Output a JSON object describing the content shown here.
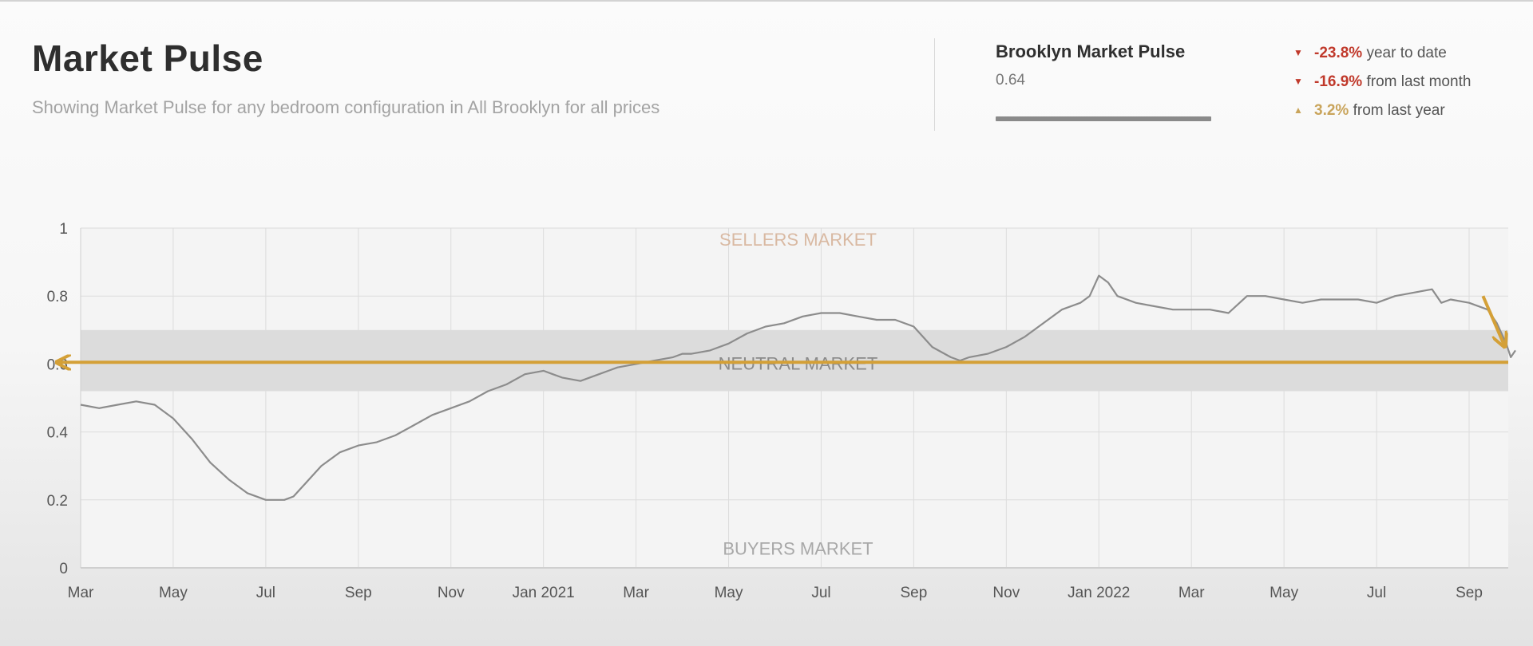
{
  "header": {
    "title": "Market Pulse",
    "subtitle": "Showing Market Pulse for any bedroom configuration in All Brooklyn for all prices"
  },
  "summary": {
    "title": "Brooklyn Market Pulse",
    "value": "0.64",
    "changes": [
      {
        "direction": "down",
        "percent": "-23.8%",
        "label": "year to date"
      },
      {
        "direction": "down",
        "percent": "-16.9%",
        "label": "from last month"
      },
      {
        "direction": "up",
        "percent": "3.2%",
        "label": "from last year"
      }
    ]
  },
  "colors": {
    "line": "#8c8c8c",
    "neutral_band": "#dcdcdc",
    "annotation": "#d4a037",
    "sellers_label": "#d9b9a2",
    "neutral_label": "#8a8a8a",
    "buyers_label": "#a8a8a8"
  },
  "chart_data": {
    "type": "line",
    "title": "Brooklyn Market Pulse",
    "xlabel": "",
    "ylabel": "",
    "ylim": [
      0,
      1
    ],
    "xlim": [
      0,
      15.5
    ],
    "x_unit": "months since Mar 2020",
    "grid": true,
    "yticks": [
      0,
      0.2,
      0.4,
      0.6,
      0.8,
      1
    ],
    "ytick_labels": [
      "0",
      "0.2",
      "0.4",
      "0.6",
      "0.8",
      "1"
    ],
    "xticks": [
      {
        "x": 0,
        "label": "Mar"
      },
      {
        "x": 1,
        "label": "May"
      },
      {
        "x": 2,
        "label": "Jul"
      },
      {
        "x": 3,
        "label": "Sep"
      },
      {
        "x": 4,
        "label": "Nov"
      },
      {
        "x": 5,
        "label": "Jan 2021"
      },
      {
        "x": 6,
        "label": "Mar"
      },
      {
        "x": 7,
        "label": "May"
      },
      {
        "x": 8,
        "label": "Jul"
      },
      {
        "x": 9,
        "label": "Sep"
      },
      {
        "x": 10,
        "label": "Nov"
      },
      {
        "x": 11,
        "label": "Jan 2022"
      },
      {
        "x": 12,
        "label": "Mar"
      },
      {
        "x": 13,
        "label": "May"
      },
      {
        "x": 14,
        "label": "Jul"
      },
      {
        "x": 15,
        "label": "Sep"
      }
    ],
    "bands": [
      {
        "name": "neutral",
        "y0": 0.52,
        "y1": 0.7
      }
    ],
    "zone_labels": [
      {
        "text": "SELLERS MARKET",
        "x": 7.75,
        "y": 0.97,
        "color": "#d9b9a2"
      },
      {
        "text": "NEUTRAL MARKET",
        "x": 7.75,
        "y": 0.605,
        "color": "#8a8a8a"
      },
      {
        "text": "BUYERS MARKET",
        "x": 7.75,
        "y": 0.06,
        "color": "#a8a8a8"
      }
    ],
    "annotations": [
      {
        "type": "hline",
        "y": 0.605,
        "color": "#d4a037",
        "arrow": "left"
      },
      {
        "type": "arrow",
        "from": [
          15.15,
          0.8
        ],
        "to": [
          15.38,
          0.655
        ],
        "color": "#d4a037"
      }
    ],
    "series": [
      {
        "name": "Market Pulse",
        "x": [
          0,
          0.2,
          0.4,
          0.6,
          0.8,
          1.0,
          1.2,
          1.4,
          1.6,
          1.8,
          2.0,
          2.2,
          2.3,
          2.4,
          2.5,
          2.6,
          2.8,
          3.0,
          3.2,
          3.4,
          3.6,
          3.8,
          4.0,
          4.2,
          4.4,
          4.6,
          4.8,
          5.0,
          5.1,
          5.2,
          5.4,
          5.6,
          5.8,
          6.0,
          6.2,
          6.4,
          6.5,
          6.6,
          6.8,
          7.0,
          7.2,
          7.4,
          7.6,
          7.8,
          8.0,
          8.2,
          8.4,
          8.6,
          8.8,
          9.0,
          9.2,
          9.4,
          9.5,
          9.6,
          9.8,
          10.0,
          10.2,
          10.4,
          10.6,
          10.8,
          10.9,
          11.0,
          11.1,
          11.2,
          11.4,
          11.6,
          11.8,
          12.0,
          12.2,
          12.4,
          12.6,
          12.8,
          13.0,
          13.2,
          13.4,
          13.6,
          13.8,
          14.0,
          14.2,
          14.4,
          14.6,
          14.7,
          14.8,
          15.0,
          15.2,
          15.3,
          15.4,
          15.45,
          15.5
        ],
        "values": [
          0.48,
          0.47,
          0.48,
          0.49,
          0.48,
          0.44,
          0.38,
          0.31,
          0.26,
          0.22,
          0.2,
          0.2,
          0.21,
          0.24,
          0.27,
          0.3,
          0.34,
          0.36,
          0.37,
          0.39,
          0.42,
          0.45,
          0.47,
          0.49,
          0.52,
          0.54,
          0.57,
          0.58,
          0.57,
          0.56,
          0.55,
          0.57,
          0.59,
          0.6,
          0.61,
          0.62,
          0.63,
          0.63,
          0.64,
          0.66,
          0.69,
          0.71,
          0.72,
          0.74,
          0.75,
          0.75,
          0.74,
          0.73,
          0.73,
          0.71,
          0.65,
          0.62,
          0.61,
          0.62,
          0.63,
          0.65,
          0.68,
          0.72,
          0.76,
          0.78,
          0.8,
          0.86,
          0.84,
          0.8,
          0.78,
          0.77,
          0.76,
          0.76,
          0.76,
          0.75,
          0.8,
          0.8,
          0.79,
          0.78,
          0.79,
          0.79,
          0.79,
          0.78,
          0.8,
          0.81,
          0.82,
          0.78,
          0.79,
          0.78,
          0.76,
          0.72,
          0.66,
          0.62,
          0.64
        ]
      }
    ]
  }
}
